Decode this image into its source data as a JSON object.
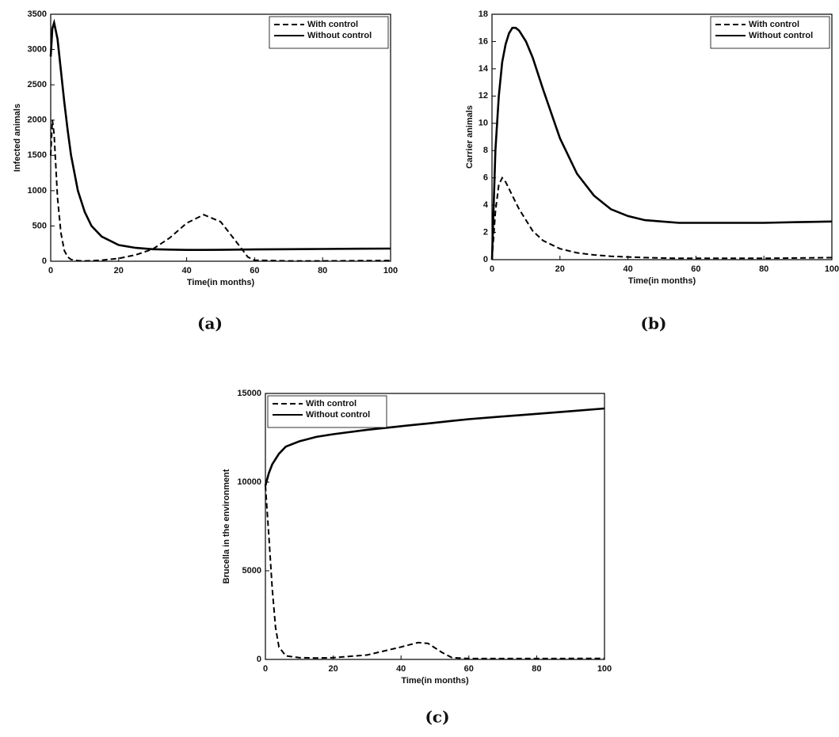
{
  "chart_data": [
    {
      "type": "line",
      "caption": "(a)",
      "xlabel": "Time(in months)",
      "ylabel": "Infected animals",
      "x": [
        0,
        0.5,
        1,
        2,
        3,
        4,
        5,
        6,
        8,
        10,
        12,
        15,
        20,
        25,
        30,
        35,
        40,
        45,
        50,
        55,
        58,
        60,
        70,
        80,
        90,
        100
      ],
      "series": [
        {
          "name": "With control",
          "color": "#000000",
          "linestyle": "dashed",
          "values": [
            1500,
            2000,
            1800,
            900,
            400,
            150,
            60,
            25,
            8,
            5,
            8,
            15,
            40,
            90,
            170,
            330,
            540,
            660,
            560,
            250,
            60,
            15,
            5,
            5,
            8,
            10
          ]
        },
        {
          "name": "Without control",
          "color": "#000000",
          "linestyle": "solid",
          "values": [
            2900,
            3300,
            3380,
            3150,
            2700,
            2250,
            1850,
            1500,
            1000,
            700,
            500,
            350,
            230,
            190,
            170,
            165,
            160,
            160,
            162,
            165,
            166,
            167,
            170,
            174,
            177,
            180
          ]
        }
      ],
      "xlim": [
        0,
        100
      ],
      "xticks": [
        0,
        20,
        40,
        60,
        80,
        100
      ],
      "ylim": [
        0,
        3500
      ],
      "yticks": [
        0,
        500,
        1000,
        1500,
        2000,
        2500,
        3000,
        3500
      ],
      "legend": "upper right"
    },
    {
      "type": "line",
      "caption": "(b)",
      "xlabel": "Time(in months)",
      "ylabel": "Carrier animals",
      "x": [
        0,
        1,
        2,
        3,
        4,
        5,
        6,
        7,
        8,
        10,
        12,
        15,
        20,
        25,
        30,
        35,
        40,
        45,
        50,
        55,
        60,
        70,
        80,
        90,
        100
      ],
      "series": [
        {
          "name": "With control",
          "color": "#000000",
          "linestyle": "dashed",
          "values": [
            0,
            3.5,
            5.5,
            6,
            5.7,
            5.2,
            4.7,
            4.2,
            3.7,
            2.9,
            2.1,
            1.4,
            0.8,
            0.5,
            0.35,
            0.25,
            0.2,
            0.15,
            0.12,
            0.1,
            0.1,
            0.1,
            0.1,
            0.12,
            0.15
          ]
        },
        {
          "name": "Without control",
          "color": "#000000",
          "linestyle": "solid",
          "values": [
            0,
            8,
            12,
            14.5,
            15.8,
            16.6,
            17,
            17,
            16.8,
            16,
            14.8,
            12.5,
            8.9,
            6.3,
            4.7,
            3.7,
            3.2,
            2.9,
            2.8,
            2.7,
            2.7,
            2.7,
            2.7,
            2.75,
            2.8
          ]
        }
      ],
      "xlim": [
        0,
        100
      ],
      "xticks": [
        0,
        20,
        40,
        60,
        80,
        100
      ],
      "ylim": [
        0,
        18
      ],
      "yticks": [
        0,
        2,
        4,
        6,
        8,
        10,
        12,
        14,
        16,
        18
      ],
      "legend": "upper right"
    },
    {
      "type": "line",
      "caption": "(c)",
      "xlabel": "Time(in months)",
      "ylabel": "Brucella in the environment",
      "x": [
        0,
        1,
        2,
        3,
        4,
        6,
        10,
        15,
        20,
        30,
        40,
        45,
        48,
        52,
        55,
        60,
        70,
        80,
        90,
        100
      ],
      "series": [
        {
          "name": "With control",
          "color": "#000000",
          "linestyle": "dashed",
          "values": [
            9800,
            7000,
            4000,
            1800,
            700,
            200,
            100,
            80,
            100,
            250,
            700,
            950,
            900,
            400,
            100,
            50,
            50,
            50,
            55,
            60
          ]
        },
        {
          "name": "Without control",
          "color": "#000000",
          "linestyle": "solid",
          "values": [
            9800,
            10500,
            11000,
            11300,
            11600,
            12000,
            12300,
            12550,
            12700,
            12950,
            13150,
            13250,
            13310,
            13390,
            13450,
            13550,
            13700,
            13850,
            14000,
            14150
          ]
        }
      ],
      "xlim": [
        0,
        100
      ],
      "xticks": [
        0,
        20,
        40,
        60,
        80,
        100
      ],
      "ylim": [
        0,
        15000
      ],
      "yticks": [
        0,
        5000,
        10000,
        15000
      ],
      "legend": "upper left"
    }
  ]
}
